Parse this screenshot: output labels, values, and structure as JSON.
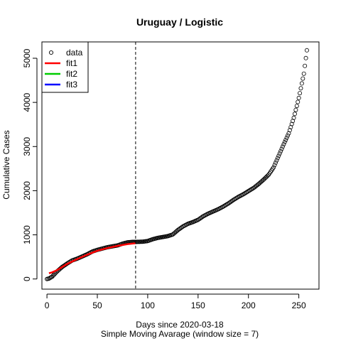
{
  "chart_data": {
    "type": "scatter",
    "title": "Uruguay / Logistic",
    "xlabel": "Days since 2020-03-18",
    "xlabel2": "Simple Moving Avarage (window size = 7)",
    "ylabel": "Cumulative Cases",
    "xlim": [
      -5,
      270
    ],
    "ylim": [
      -230,
      5370
    ],
    "xticks": [
      0,
      50,
      100,
      150,
      200,
      250
    ],
    "yticks": [
      0,
      1000,
      2000,
      3000,
      4000,
      5000
    ],
    "vline_x": 88,
    "grid": false,
    "legend_position": "top-left",
    "legend": [
      {
        "label": "data",
        "kind": "point",
        "color": "#000000"
      },
      {
        "label": "fit1",
        "kind": "line",
        "color": "#ff0000"
      },
      {
        "label": "fit2",
        "kind": "line",
        "color": "#00cd00"
      },
      {
        "label": "fit3",
        "kind": "line",
        "color": "#0000ff"
      }
    ],
    "data_anchors": [
      [
        0,
        0
      ],
      [
        2,
        10
      ],
      [
        5,
        50
      ],
      [
        10,
        170
      ],
      [
        15,
        270
      ],
      [
        20,
        350
      ],
      [
        25,
        420
      ],
      [
        30,
        460
      ],
      [
        35,
        510
      ],
      [
        40,
        560
      ],
      [
        45,
        620
      ],
      [
        50,
        660
      ],
      [
        55,
        690
      ],
      [
        60,
        720
      ],
      [
        65,
        740
      ],
      [
        70,
        760
      ],
      [
        75,
        800
      ],
      [
        80,
        830
      ],
      [
        85,
        840
      ],
      [
        88,
        840
      ],
      [
        95,
        845
      ],
      [
        100,
        860
      ],
      [
        105,
        900
      ],
      [
        110,
        930
      ],
      [
        115,
        950
      ],
      [
        120,
        970
      ],
      [
        125,
        1010
      ],
      [
        130,
        1110
      ],
      [
        135,
        1190
      ],
      [
        140,
        1250
      ],
      [
        145,
        1290
      ],
      [
        150,
        1340
      ],
      [
        155,
        1420
      ],
      [
        160,
        1480
      ],
      [
        165,
        1530
      ],
      [
        170,
        1580
      ],
      [
        175,
        1640
      ],
      [
        180,
        1710
      ],
      [
        185,
        1790
      ],
      [
        190,
        1860
      ],
      [
        195,
        1920
      ],
      [
        200,
        1990
      ],
      [
        205,
        2060
      ],
      [
        210,
        2150
      ],
      [
        215,
        2250
      ],
      [
        220,
        2360
      ],
      [
        225,
        2530
      ],
      [
        230,
        2790
      ],
      [
        235,
        3050
      ],
      [
        240,
        3300
      ],
      [
        245,
        3650
      ],
      [
        250,
        4100
      ],
      [
        255,
        4650
      ],
      [
        258,
        5180
      ]
    ],
    "series": [
      {
        "name": "fit1",
        "color": "#ff0000",
        "points": [
          [
            2,
            130
          ],
          [
            5,
            150
          ],
          [
            10,
            200
          ],
          [
            20,
            340
          ],
          [
            30,
            450
          ],
          [
            40,
            550
          ],
          [
            50,
            640
          ],
          [
            60,
            700
          ],
          [
            70,
            750
          ],
          [
            80,
            790
          ],
          [
            88,
            810
          ]
        ]
      }
    ]
  }
}
